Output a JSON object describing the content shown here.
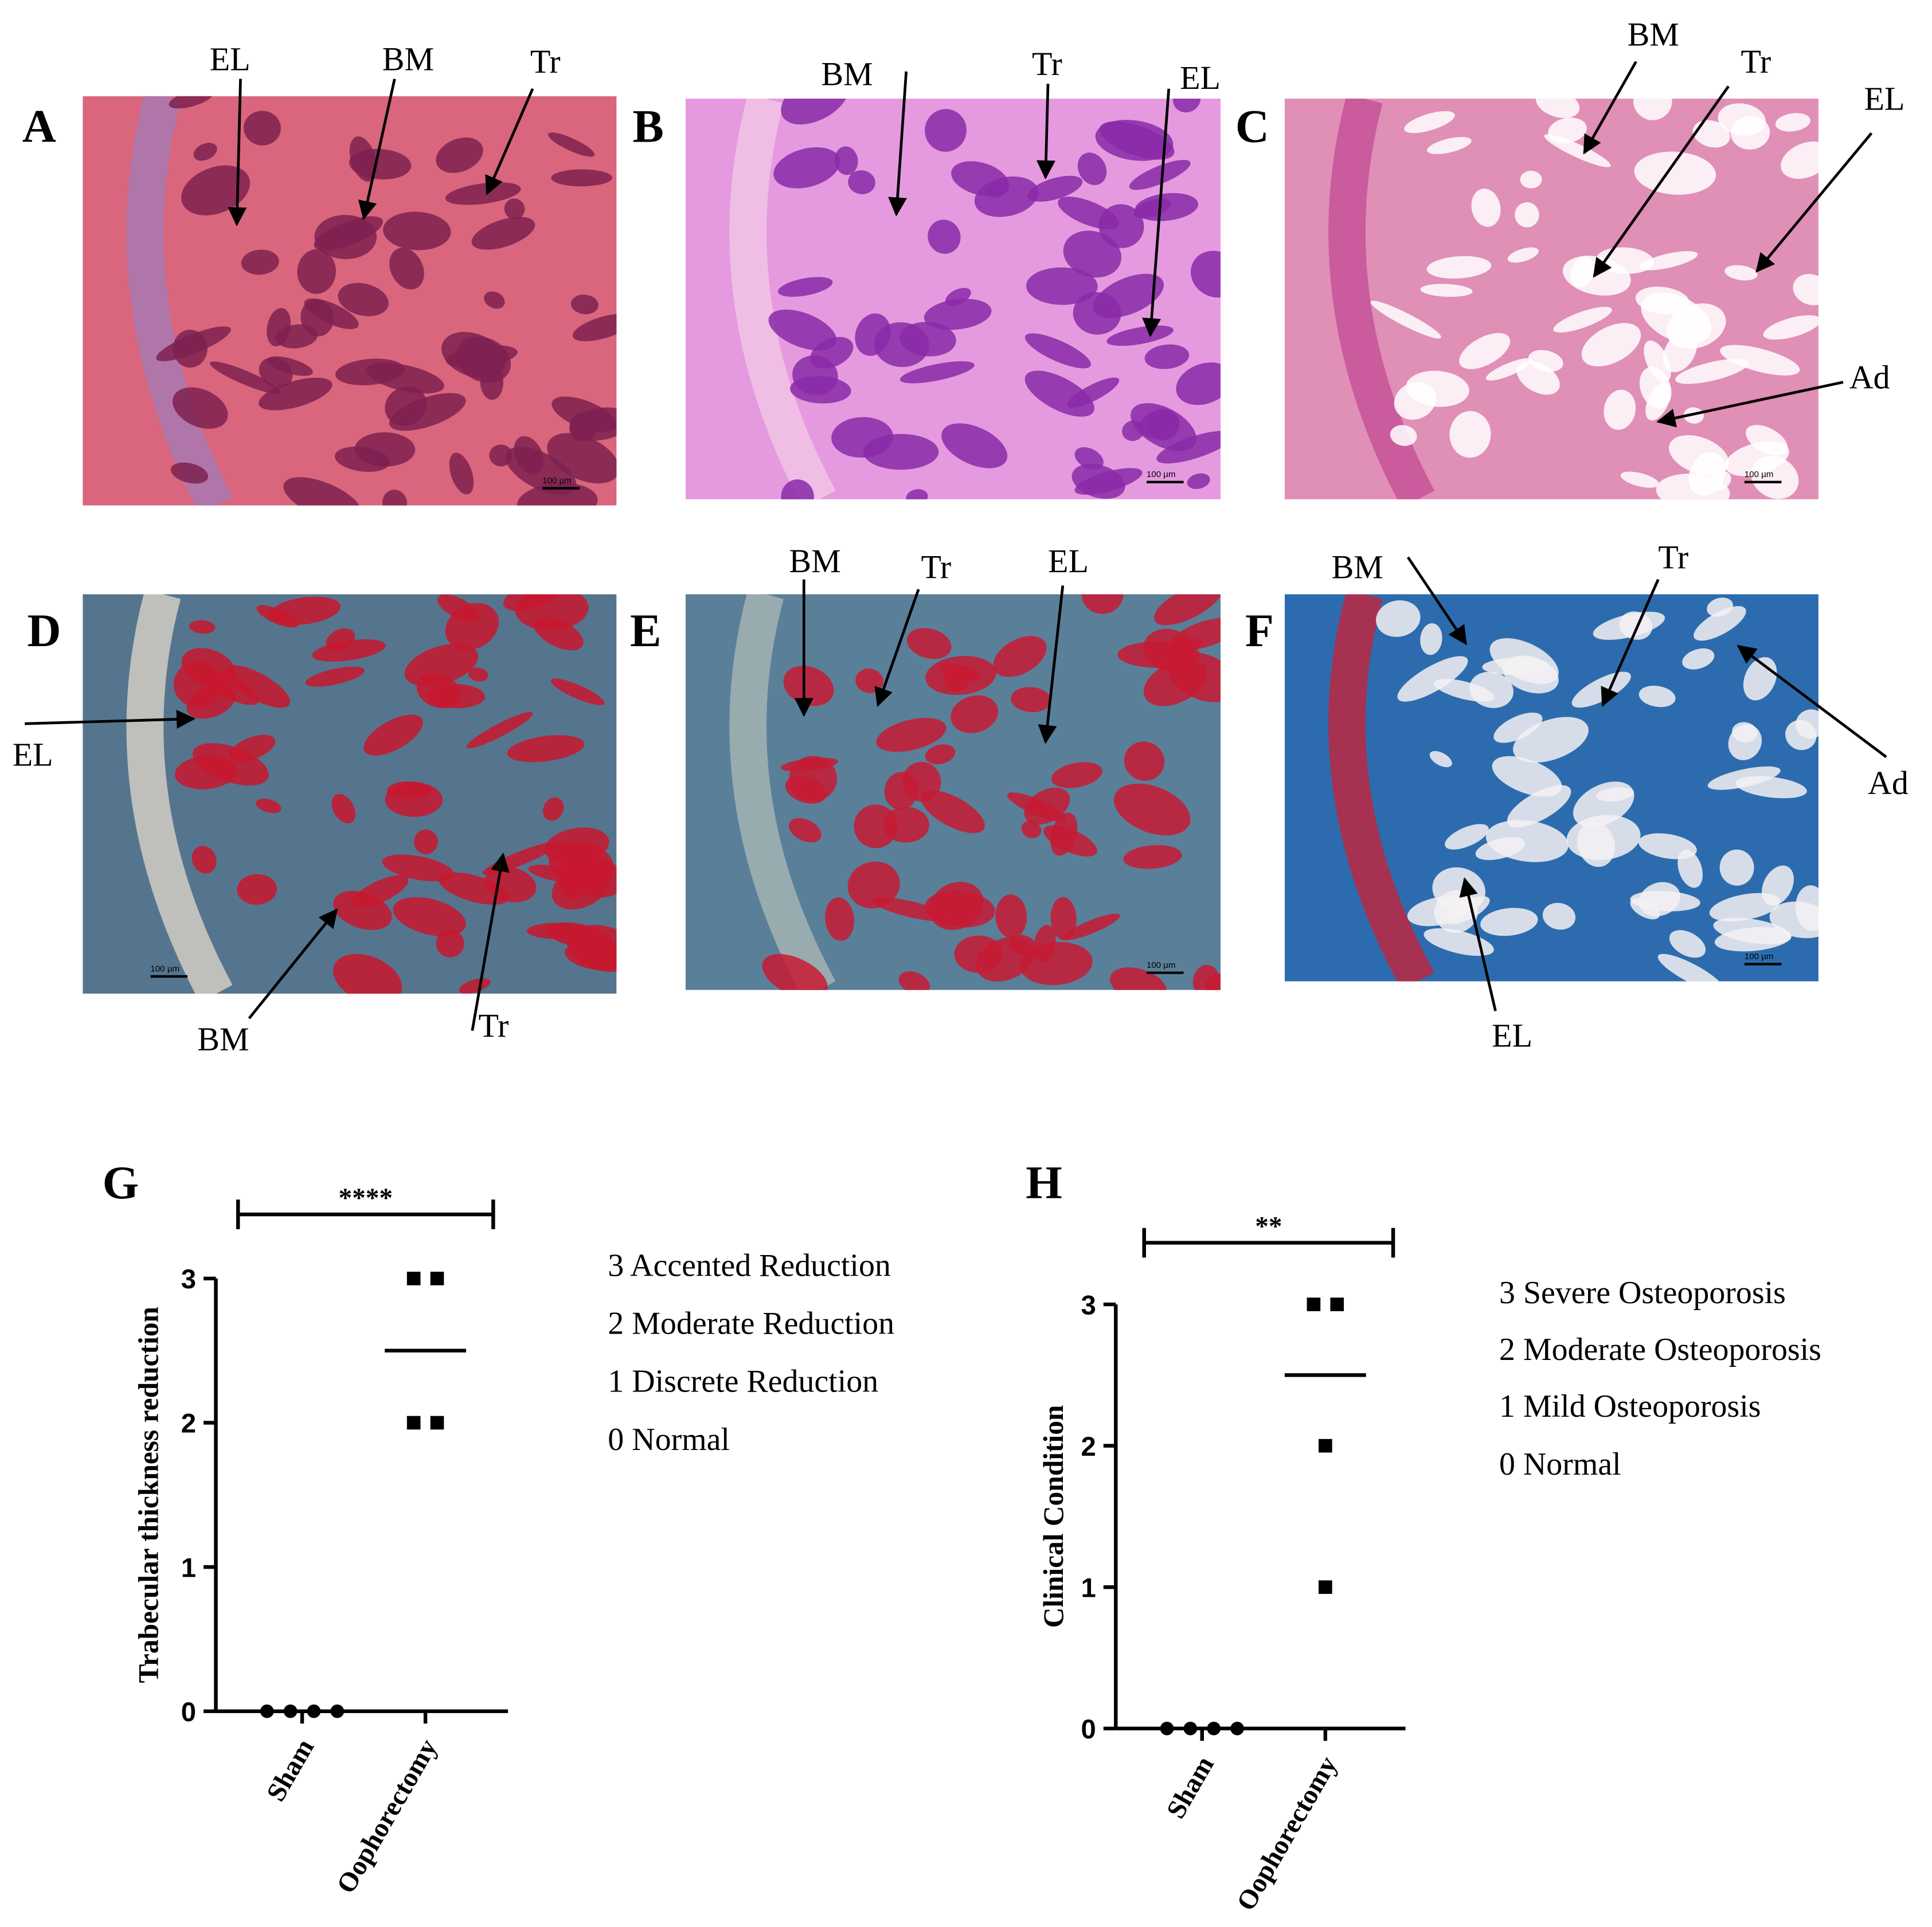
{
  "panels": [
    {
      "label": "A",
      "annotations": [
        "EL",
        "BM",
        "Tr"
      ],
      "scale_bar": "100 µm"
    },
    {
      "label": "B",
      "annotations": [
        "BM",
        "Tr",
        "EL"
      ],
      "scale_bar": "100 µm"
    },
    {
      "label": "C",
      "annotations": [
        "BM",
        "Tr",
        "EL",
        "Ad"
      ],
      "scale_bar": "100 µm"
    },
    {
      "label": "D",
      "annotations": [
        "EL",
        "BM",
        "Tr"
      ],
      "scale_bar": "100 µm"
    },
    {
      "label": "E",
      "annotations": [
        "BM",
        "Tr",
        "EL"
      ],
      "scale_bar": "100 µm"
    },
    {
      "label": "F",
      "annotations": [
        "BM",
        "Tr",
        "Ad",
        "EL"
      ],
      "scale_bar": "100 µm"
    }
  ],
  "chart_data": [
    {
      "type": "dot",
      "label": "G",
      "ylabel": "Trabecular thickness reduction",
      "categories": [
        "Sham",
        "Oophorectomy"
      ],
      "values": [
        [
          0,
          0,
          0,
          0
        ],
        [
          3,
          3,
          2,
          2
        ]
      ],
      "center_lines": [
        0,
        2.5
      ],
      "color": "#000000",
      "ylim": [
        0,
        3
      ],
      "yticks": [
        0,
        1,
        2,
        3
      ],
      "significance": "****",
      "key": [
        "3 Accented Reduction",
        "2 Moderate Reduction",
        "1 Discrete Reduction",
        "0 Normal"
      ]
    },
    {
      "type": "dot",
      "label": "H",
      "ylabel": "Clinical Condition",
      "categories": [
        "Sham",
        "Oophorectomy"
      ],
      "values": [
        [
          0,
          0,
          0,
          0
        ],
        [
          3,
          3,
          2,
          1
        ]
      ],
      "center_lines": [
        0,
        2.5
      ],
      "color": "#000000",
      "ylim": [
        0,
        3
      ],
      "yticks": [
        0,
        1,
        2,
        3
      ],
      "significance": "**",
      "key": [
        "3 Severe Osteoporosis",
        "2 Moderate Osteoporosis",
        "1 Mild Osteoporosis",
        "0 Normal"
      ]
    }
  ]
}
